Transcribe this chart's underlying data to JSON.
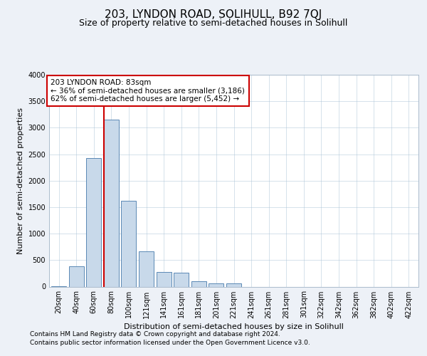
{
  "title": "203, LYNDON ROAD, SOLIHULL, B92 7QJ",
  "subtitle": "Size of property relative to semi-detached houses in Solihull",
  "xlabel": "Distribution of semi-detached houses by size in Solihull",
  "ylabel": "Number of semi-detached properties",
  "footnote1": "Contains HM Land Registry data © Crown copyright and database right 2024.",
  "footnote2": "Contains public sector information licensed under the Open Government Licence v3.0.",
  "bar_labels": [
    "20sqm",
    "40sqm",
    "60sqm",
    "80sqm",
    "100sqm",
    "121sqm",
    "141sqm",
    "161sqm",
    "181sqm",
    "201sqm",
    "221sqm",
    "241sqm",
    "261sqm",
    "281sqm",
    "301sqm",
    "322sqm",
    "342sqm",
    "362sqm",
    "382sqm",
    "402sqm",
    "422sqm"
  ],
  "bar_values": [
    10,
    380,
    2430,
    3150,
    1620,
    670,
    270,
    265,
    100,
    60,
    55,
    0,
    0,
    0,
    0,
    0,
    0,
    0,
    0,
    0,
    0
  ],
  "bar_color": "#c8d9ea",
  "bar_edge_color": "#5a88b5",
  "vline_color": "#cc0000",
  "vline_pos": 2.575,
  "annotation_line1": "203 LYNDON ROAD: 83sqm",
  "annotation_line2": "← 36% of semi-detached houses are smaller (3,186)",
  "annotation_line3": "62% of semi-detached houses are larger (5,452) →",
  "ylim": [
    0,
    4000
  ],
  "yticks": [
    0,
    500,
    1000,
    1500,
    2000,
    2500,
    3000,
    3500,
    4000
  ],
  "bg_color": "#edf1f7",
  "plot_bg_color": "#ffffff",
  "grid_color": "#adc5d8",
  "ann_edge_color": "#cc0000",
  "ann_face_color": "#ffffff",
  "title_fontsize": 11,
  "subtitle_fontsize": 9,
  "xlabel_fontsize": 8,
  "ylabel_fontsize": 8,
  "tick_fontsize": 7,
  "ann_fontsize": 7.5,
  "footer_fontsize": 6.5
}
